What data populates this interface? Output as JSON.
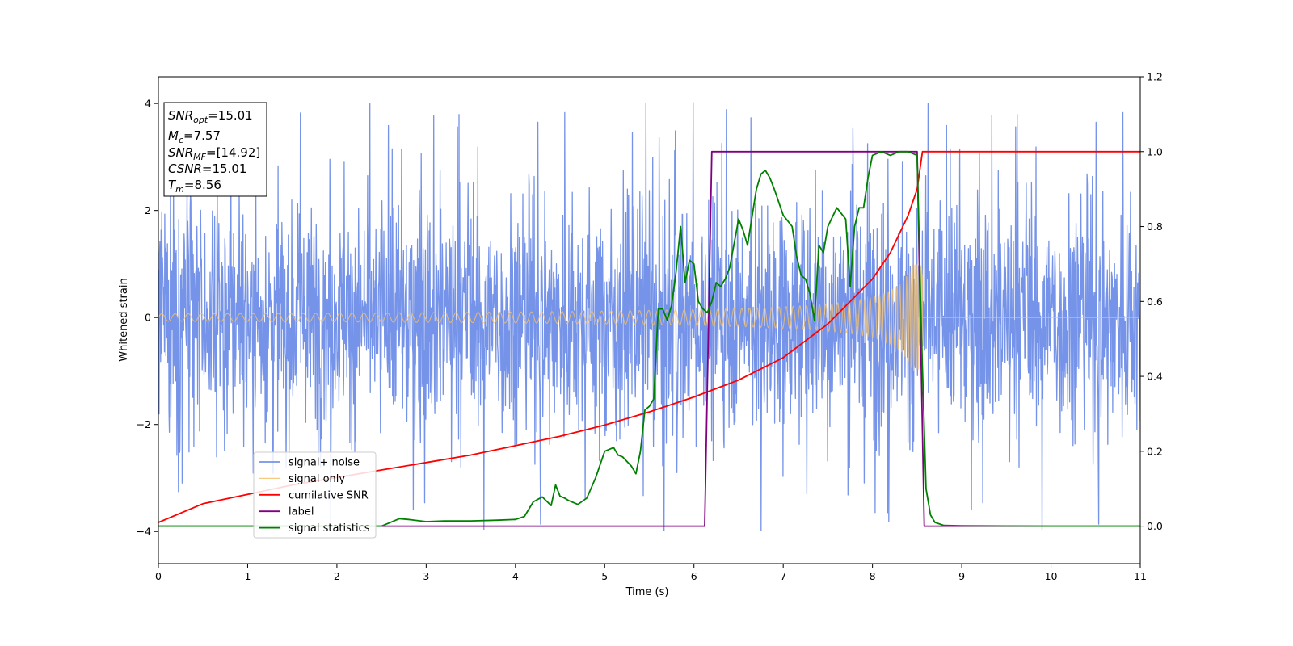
{
  "chart_data": {
    "type": "line",
    "title": "",
    "xlabel": "Time (s)",
    "ylabel": "Whitened strain",
    "xlim": [
      0,
      11
    ],
    "ylim_left": [
      -4.6,
      4.5
    ],
    "ylim_right": [
      -0.1,
      1.2
    ],
    "x_ticks": [
      "0",
      "1",
      "2",
      "3",
      "4",
      "5",
      "6",
      "7",
      "8",
      "9",
      "10",
      "11"
    ],
    "y_ticks_left": [
      "4",
      "2",
      "0",
      "−2",
      "−4"
    ],
    "y_ticks_right": [
      "1.2",
      "1.0",
      "0.8",
      "0.6",
      "0.4",
      "0.2",
      "0.0"
    ],
    "grid": false,
    "legend_position": "lower-left",
    "annotation": [
      {
        "sym": "SNR",
        "sub": "opt",
        "val": "=15.01"
      },
      {
        "sym": "M",
        "sub": "c",
        "val": "=7.57"
      },
      {
        "sym": "SNR",
        "sub": "MF",
        "val": "=[14.92]"
      },
      {
        "sym": "CSNR",
        "sub": "",
        "val": "=15.01"
      },
      {
        "sym": "T",
        "sub": "m",
        "val": "=8.56"
      }
    ],
    "series": [
      {
        "name": "signal+ noise",
        "color": "#7593e8",
        "axis": "left",
        "style": "noise",
        "noise_std": 1.05,
        "spike_max": 4.1,
        "x_range": [
          0,
          11
        ]
      },
      {
        "name": "signal only",
        "color": "#f5c26b",
        "axis": "left",
        "style": "chirp",
        "merger_time": 8.56,
        "amplitude_start": 0.07,
        "amplitude_peak": 1.0
      },
      {
        "name": "cumilative SNR",
        "color": "#ff0000",
        "axis": "right",
        "x": [
          0,
          0.5,
          1,
          1.5,
          2,
          2.5,
          3,
          3.5,
          4,
          4.5,
          5,
          5.5,
          6,
          6.5,
          7,
          7.5,
          8,
          8.2,
          8.4,
          8.5,
          8.56,
          9,
          10,
          11
        ],
        "y": [
          0.01,
          0.06,
          0.085,
          0.11,
          0.13,
          0.15,
          0.17,
          0.19,
          0.215,
          0.24,
          0.27,
          0.305,
          0.345,
          0.39,
          0.45,
          0.54,
          0.66,
          0.73,
          0.83,
          0.9,
          1.0,
          1.0,
          1.0,
          1.0
        ]
      },
      {
        "name": "label",
        "color": "#800080",
        "axis": "right",
        "x": [
          0,
          6.12,
          6.2,
          8.5,
          8.58,
          11
        ],
        "y": [
          0.0,
          0.0,
          1.0,
          1.0,
          0.0,
          0.0
        ]
      },
      {
        "name": "signal statistics",
        "color": "#008000",
        "axis": "right",
        "x": [
          0,
          0.5,
          1,
          1.5,
          2,
          2.5,
          2.7,
          2.8,
          3.0,
          3.2,
          3.5,
          3.8,
          4.0,
          4.1,
          4.2,
          4.3,
          4.4,
          4.45,
          4.5,
          4.55,
          4.6,
          4.7,
          4.8,
          4.9,
          5.0,
          5.1,
          5.15,
          5.2,
          5.3,
          5.35,
          5.4,
          5.45,
          5.5,
          5.55,
          5.6,
          5.65,
          5.7,
          5.75,
          5.8,
          5.85,
          5.9,
          5.95,
          6.0,
          6.05,
          6.1,
          6.15,
          6.2,
          6.25,
          6.3,
          6.35,
          6.4,
          6.5,
          6.55,
          6.6,
          6.7,
          6.75,
          6.8,
          6.85,
          6.9,
          7.0,
          7.1,
          7.15,
          7.2,
          7.25,
          7.3,
          7.35,
          7.4,
          7.45,
          7.5,
          7.6,
          7.7,
          7.75,
          7.8,
          7.85,
          7.9,
          7.95,
          8.0,
          8.1,
          8.2,
          8.3,
          8.4,
          8.5,
          8.55,
          8.6,
          8.65,
          8.7,
          8.8,
          9.0,
          10.0,
          11.0
        ],
        "y": [
          0.0,
          0.0,
          0.0,
          0.0,
          0.0,
          0.0,
          0.02,
          0.018,
          0.012,
          0.014,
          0.014,
          0.016,
          0.018,
          0.026,
          0.065,
          0.078,
          0.055,
          0.11,
          0.08,
          0.075,
          0.068,
          0.058,
          0.075,
          0.13,
          0.2,
          0.21,
          0.19,
          0.185,
          0.16,
          0.14,
          0.2,
          0.31,
          0.32,
          0.34,
          0.58,
          0.58,
          0.55,
          0.59,
          0.68,
          0.8,
          0.65,
          0.71,
          0.7,
          0.6,
          0.58,
          0.57,
          0.6,
          0.65,
          0.64,
          0.66,
          0.69,
          0.82,
          0.79,
          0.75,
          0.9,
          0.94,
          0.95,
          0.93,
          0.9,
          0.83,
          0.8,
          0.72,
          0.67,
          0.66,
          0.62,
          0.55,
          0.75,
          0.73,
          0.8,
          0.85,
          0.82,
          0.64,
          0.8,
          0.85,
          0.85,
          0.93,
          0.99,
          1.0,
          0.99,
          1.0,
          1.0,
          0.99,
          0.5,
          0.1,
          0.03,
          0.01,
          0.002,
          0.001,
          0.0,
          0.0
        ]
      }
    ]
  }
}
